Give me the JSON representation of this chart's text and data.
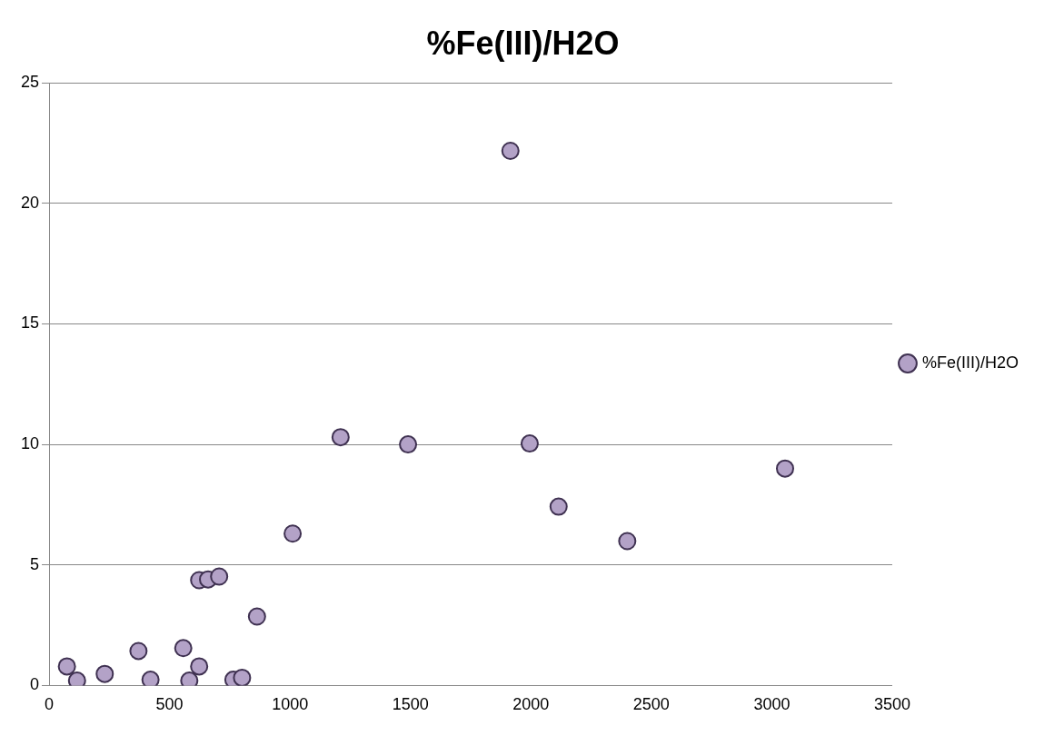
{
  "chart_data": {
    "type": "scatter",
    "title": "%Fe(III)/H2O",
    "series": [
      {
        "name": "%Fe(III)/H2O",
        "color": "#b3a2c7",
        "x": [
          74,
          116,
          231,
          371,
          421,
          557,
          582,
          623,
          623,
          660,
          706,
          765,
          801,
          863,
          1011,
          1210,
          1490,
          1915,
          1995,
          2115,
          2400,
          3055
        ],
        "values": [
          0.79,
          0.2,
          0.48,
          1.43,
          0.24,
          1.55,
          0.2,
          0.79,
          4.37,
          4.4,
          4.52,
          0.24,
          0.32,
          2.86,
          6.3,
          10.3,
          10.0,
          22.18,
          10.04,
          7.42,
          5.99,
          9.0
        ]
      }
    ],
    "xlim": [
      0,
      3500
    ],
    "xticks": [
      0,
      500,
      1000,
      1500,
      2000,
      2500,
      3000,
      3500
    ],
    "ylim": [
      0,
      25
    ],
    "yticks": [
      0,
      5,
      10,
      15,
      20,
      25
    ],
    "grid": "y",
    "legend": "right",
    "marker": "circle"
  }
}
